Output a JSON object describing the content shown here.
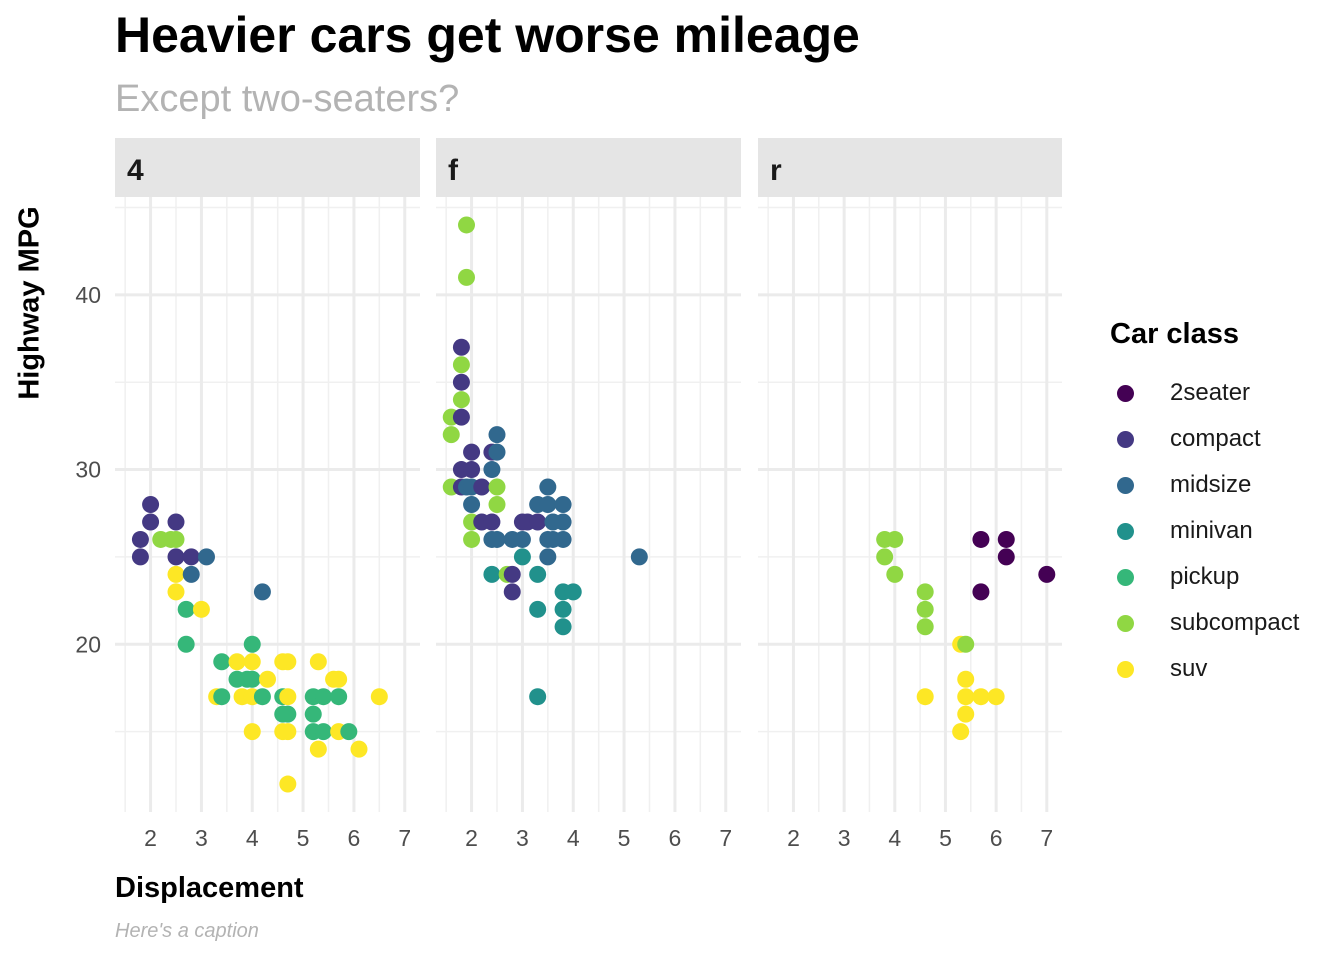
{
  "title": "Heavier cars get worse mileage",
  "subtitle": "Except two-seaters?",
  "caption": "Here's a caption",
  "legend": {
    "title": "Car class",
    "items": [
      {
        "label": "2seater",
        "color": "#440154"
      },
      {
        "label": "compact",
        "color": "#443983"
      },
      {
        "label": "midsize",
        "color": "#31688e"
      },
      {
        "label": "minivan",
        "color": "#21918c"
      },
      {
        "label": "pickup",
        "color": "#35b779"
      },
      {
        "label": "subcompact",
        "color": "#90d743"
      },
      {
        "label": "suv",
        "color": "#fde725"
      }
    ]
  },
  "chart_data": {
    "type": "scatter",
    "xlabel": "Displacement",
    "ylabel": "Highway MPG",
    "xlim": [
      1.3,
      7.3
    ],
    "ylim": [
      10.4,
      45.6
    ],
    "x_ticks": [
      2,
      3,
      4,
      5,
      6,
      7
    ],
    "y_ticks": [
      20,
      30,
      40
    ],
    "grid": true,
    "legend_position": "right",
    "facets": [
      {
        "label": "4",
        "points": [
          {
            "x": 1.8,
            "y": 26,
            "class": "compact"
          },
          {
            "x": 1.8,
            "y": 25,
            "class": "compact"
          },
          {
            "x": 2.0,
            "y": 28,
            "class": "compact"
          },
          {
            "x": 2.0,
            "y": 27,
            "class": "compact"
          },
          {
            "x": 2.2,
            "y": 26,
            "class": "subcompact"
          },
          {
            "x": 2.4,
            "y": 26,
            "class": "subcompact"
          },
          {
            "x": 2.5,
            "y": 27,
            "class": "compact"
          },
          {
            "x": 2.5,
            "y": 26,
            "class": "subcompact"
          },
          {
            "x": 2.5,
            "y": 25,
            "class": "compact"
          },
          {
            "x": 2.5,
            "y": 24,
            "class": "suv"
          },
          {
            "x": 2.5,
            "y": 23,
            "class": "suv"
          },
          {
            "x": 2.7,
            "y": 22,
            "class": "pickup"
          },
          {
            "x": 2.7,
            "y": 20,
            "class": "pickup"
          },
          {
            "x": 2.8,
            "y": 25,
            "class": "compact"
          },
          {
            "x": 2.8,
            "y": 24,
            "class": "midsize"
          },
          {
            "x": 3.0,
            "y": 22,
            "class": "suv"
          },
          {
            "x": 3.1,
            "y": 25,
            "class": "midsize"
          },
          {
            "x": 3.3,
            "y": 17,
            "class": "suv"
          },
          {
            "x": 3.4,
            "y": 19,
            "class": "pickup"
          },
          {
            "x": 3.4,
            "y": 17,
            "class": "pickup"
          },
          {
            "x": 3.7,
            "y": 19,
            "class": "suv"
          },
          {
            "x": 3.7,
            "y": 18,
            "class": "pickup"
          },
          {
            "x": 3.8,
            "y": 17,
            "class": "suv"
          },
          {
            "x": 3.9,
            "y": 18,
            "class": "pickup"
          },
          {
            "x": 4.0,
            "y": 20,
            "class": "pickup"
          },
          {
            "x": 4.0,
            "y": 19,
            "class": "suv"
          },
          {
            "x": 4.0,
            "y": 18,
            "class": "pickup"
          },
          {
            "x": 4.0,
            "y": 17,
            "class": "suv"
          },
          {
            "x": 4.0,
            "y": 15,
            "class": "suv"
          },
          {
            "x": 4.2,
            "y": 23,
            "class": "midsize"
          },
          {
            "x": 4.2,
            "y": 17,
            "class": "pickup"
          },
          {
            "x": 4.3,
            "y": 18,
            "class": "suv"
          },
          {
            "x": 4.6,
            "y": 19,
            "class": "suv"
          },
          {
            "x": 4.6,
            "y": 17,
            "class": "pickup"
          },
          {
            "x": 4.6,
            "y": 16,
            "class": "pickup"
          },
          {
            "x": 4.6,
            "y": 15,
            "class": "suv"
          },
          {
            "x": 4.7,
            "y": 19,
            "class": "suv"
          },
          {
            "x": 4.7,
            "y": 17,
            "class": "suv"
          },
          {
            "x": 4.7,
            "y": 16,
            "class": "pickup"
          },
          {
            "x": 4.7,
            "y": 15,
            "class": "suv"
          },
          {
            "x": 4.7,
            "y": 12,
            "class": "suv"
          },
          {
            "x": 5.2,
            "y": 17,
            "class": "pickup"
          },
          {
            "x": 5.2,
            "y": 16,
            "class": "pickup"
          },
          {
            "x": 5.2,
            "y": 15,
            "class": "pickup"
          },
          {
            "x": 5.3,
            "y": 19,
            "class": "suv"
          },
          {
            "x": 5.3,
            "y": 14,
            "class": "suv"
          },
          {
            "x": 5.4,
            "y": 17,
            "class": "pickup"
          },
          {
            "x": 5.4,
            "y": 15,
            "class": "pickup"
          },
          {
            "x": 5.6,
            "y": 18,
            "class": "suv"
          },
          {
            "x": 5.7,
            "y": 18,
            "class": "suv"
          },
          {
            "x": 5.7,
            "y": 17,
            "class": "pickup"
          },
          {
            "x": 5.7,
            "y": 15,
            "class": "suv"
          },
          {
            "x": 5.9,
            "y": 15,
            "class": "pickup"
          },
          {
            "x": 6.1,
            "y": 14,
            "class": "suv"
          },
          {
            "x": 6.5,
            "y": 17,
            "class": "suv"
          }
        ]
      },
      {
        "label": "f",
        "points": [
          {
            "x": 1.6,
            "y": 33,
            "class": "subcompact"
          },
          {
            "x": 1.6,
            "y": 32,
            "class": "subcompact"
          },
          {
            "x": 1.6,
            "y": 29,
            "class": "subcompact"
          },
          {
            "x": 1.8,
            "y": 37,
            "class": "compact"
          },
          {
            "x": 1.8,
            "y": 36,
            "class": "subcompact"
          },
          {
            "x": 1.8,
            "y": 35,
            "class": "compact"
          },
          {
            "x": 1.8,
            "y": 34,
            "class": "subcompact"
          },
          {
            "x": 1.8,
            "y": 33,
            "class": "compact"
          },
          {
            "x": 1.8,
            "y": 30,
            "class": "compact"
          },
          {
            "x": 1.8,
            "y": 29,
            "class": "compact"
          },
          {
            "x": 1.9,
            "y": 44,
            "class": "subcompact"
          },
          {
            "x": 1.9,
            "y": 41,
            "class": "subcompact"
          },
          {
            "x": 1.9,
            "y": 29,
            "class": "midsize"
          },
          {
            "x": 2.0,
            "y": 31,
            "class": "compact"
          },
          {
            "x": 2.0,
            "y": 30,
            "class": "compact"
          },
          {
            "x": 2.0,
            "y": 29,
            "class": "midsize"
          },
          {
            "x": 2.0,
            "y": 28,
            "class": "midsize"
          },
          {
            "x": 2.0,
            "y": 27,
            "class": "subcompact"
          },
          {
            "x": 2.0,
            "y": 26,
            "class": "subcompact"
          },
          {
            "x": 2.2,
            "y": 29,
            "class": "compact"
          },
          {
            "x": 2.2,
            "y": 27,
            "class": "compact"
          },
          {
            "x": 2.4,
            "y": 31,
            "class": "compact"
          },
          {
            "x": 2.4,
            "y": 30,
            "class": "midsize"
          },
          {
            "x": 2.4,
            "y": 27,
            "class": "compact"
          },
          {
            "x": 2.4,
            "y": 26,
            "class": "midsize"
          },
          {
            "x": 2.4,
            "y": 24,
            "class": "minivan"
          },
          {
            "x": 2.5,
            "y": 32,
            "class": "midsize"
          },
          {
            "x": 2.5,
            "y": 31,
            "class": "midsize"
          },
          {
            "x": 2.5,
            "y": 29,
            "class": "subcompact"
          },
          {
            "x": 2.5,
            "y": 28,
            "class": "subcompact"
          },
          {
            "x": 2.5,
            "y": 26,
            "class": "midsize"
          },
          {
            "x": 2.7,
            "y": 24,
            "class": "subcompact"
          },
          {
            "x": 2.8,
            "y": 26,
            "class": "midsize"
          },
          {
            "x": 2.8,
            "y": 24,
            "class": "compact"
          },
          {
            "x": 2.8,
            "y": 23,
            "class": "compact"
          },
          {
            "x": 3.0,
            "y": 27,
            "class": "compact"
          },
          {
            "x": 3.0,
            "y": 26,
            "class": "midsize"
          },
          {
            "x": 3.0,
            "y": 25,
            "class": "minivan"
          },
          {
            "x": 3.1,
            "y": 27,
            "class": "compact"
          },
          {
            "x": 3.3,
            "y": 28,
            "class": "midsize"
          },
          {
            "x": 3.3,
            "y": 27,
            "class": "compact"
          },
          {
            "x": 3.3,
            "y": 24,
            "class": "minivan"
          },
          {
            "x": 3.3,
            "y": 22,
            "class": "minivan"
          },
          {
            "x": 3.3,
            "y": 17,
            "class": "minivan"
          },
          {
            "x": 3.5,
            "y": 29,
            "class": "midsize"
          },
          {
            "x": 3.5,
            "y": 28,
            "class": "midsize"
          },
          {
            "x": 3.5,
            "y": 26,
            "class": "midsize"
          },
          {
            "x": 3.5,
            "y": 25,
            "class": "midsize"
          },
          {
            "x": 3.6,
            "y": 27,
            "class": "midsize"
          },
          {
            "x": 3.6,
            "y": 26,
            "class": "midsize"
          },
          {
            "x": 3.8,
            "y": 28,
            "class": "midsize"
          },
          {
            "x": 3.8,
            "y": 27,
            "class": "midsize"
          },
          {
            "x": 3.8,
            "y": 26,
            "class": "midsize"
          },
          {
            "x": 3.8,
            "y": 23,
            "class": "minivan"
          },
          {
            "x": 3.8,
            "y": 22,
            "class": "minivan"
          },
          {
            "x": 3.8,
            "y": 21,
            "class": "minivan"
          },
          {
            "x": 4.0,
            "y": 23,
            "class": "minivan"
          },
          {
            "x": 5.3,
            "y": 25,
            "class": "midsize"
          }
        ]
      },
      {
        "label": "r",
        "points": [
          {
            "x": 3.8,
            "y": 26,
            "class": "subcompact"
          },
          {
            "x": 3.8,
            "y": 25,
            "class": "subcompact"
          },
          {
            "x": 4.0,
            "y": 26,
            "class": "subcompact"
          },
          {
            "x": 4.0,
            "y": 24,
            "class": "subcompact"
          },
          {
            "x": 4.6,
            "y": 23,
            "class": "subcompact"
          },
          {
            "x": 4.6,
            "y": 22,
            "class": "subcompact"
          },
          {
            "x": 4.6,
            "y": 21,
            "class": "subcompact"
          },
          {
            "x": 4.6,
            "y": 17,
            "class": "suv"
          },
          {
            "x": 5.3,
            "y": 20,
            "class": "suv"
          },
          {
            "x": 5.3,
            "y": 15,
            "class": "suv"
          },
          {
            "x": 5.4,
            "y": 20,
            "class": "subcompact"
          },
          {
            "x": 5.4,
            "y": 18,
            "class": "suv"
          },
          {
            "x": 5.4,
            "y": 17,
            "class": "suv"
          },
          {
            "x": 5.4,
            "y": 16,
            "class": "suv"
          },
          {
            "x": 5.7,
            "y": 26,
            "class": "2seater"
          },
          {
            "x": 5.7,
            "y": 23,
            "class": "2seater"
          },
          {
            "x": 5.7,
            "y": 17,
            "class": "suv"
          },
          {
            "x": 6.0,
            "y": 17,
            "class": "suv"
          },
          {
            "x": 6.2,
            "y": 26,
            "class": "2seater"
          },
          {
            "x": 6.2,
            "y": 25,
            "class": "2seater"
          },
          {
            "x": 7.0,
            "y": 24,
            "class": "2seater"
          }
        ]
      }
    ]
  }
}
